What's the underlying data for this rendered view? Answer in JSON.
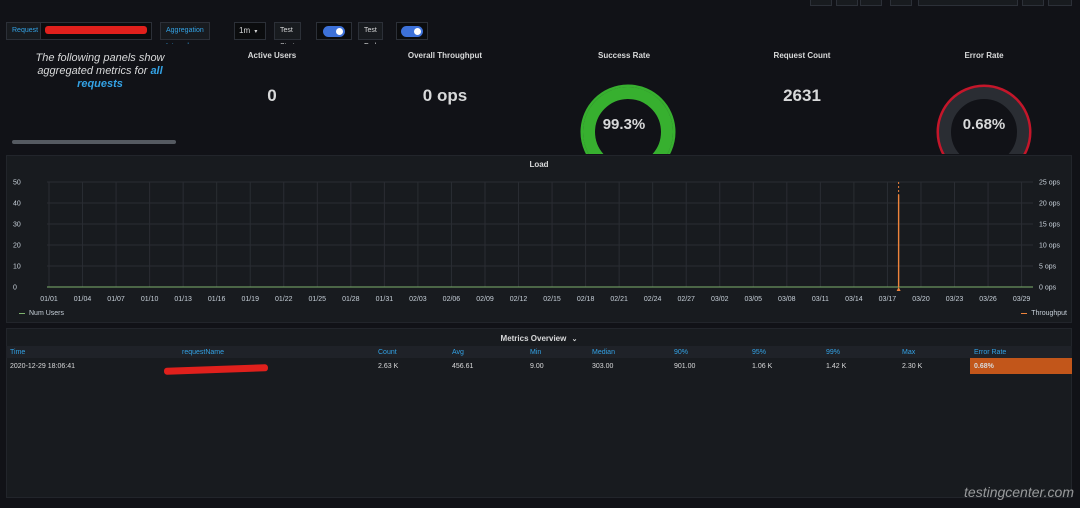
{
  "variables": {
    "request_label": "Request",
    "aggregation_label": "Aggregation Interval",
    "aggregation_value": "1m",
    "aggregation_caret": "▾",
    "test_start_label": "Test Start",
    "test_end_label": "Test End"
  },
  "info_panel": {
    "text_before": "The following panels show aggregated metrics for ",
    "text_highlight": "all requests"
  },
  "stats": {
    "active_users": {
      "title": "Active Users",
      "value": "0"
    },
    "throughput": {
      "title": "Overall Throughput",
      "value": "0 ops"
    },
    "success_rate": {
      "title": "Success Rate",
      "value": "99.3%",
      "fraction": 0.993,
      "color": "#37b02f"
    },
    "request_count": {
      "title": "Request Count",
      "value": "2631"
    },
    "error_rate": {
      "title": "Error Rate",
      "value": "0.68%",
      "fraction": 0.0068,
      "color": "#e0752d",
      "threshold_color": "#c4162a"
    }
  },
  "load_panel": {
    "title": "Load",
    "legend_left": "Num Users",
    "legend_right": "Throughput",
    "colors": {
      "users": "#7eb26d",
      "throughput": "#ef843c"
    }
  },
  "chart_data": {
    "type": "line",
    "title": "Load",
    "x_ticks": [
      "01/01",
      "01/04",
      "01/07",
      "01/10",
      "01/13",
      "01/16",
      "01/19",
      "01/22",
      "01/25",
      "01/28",
      "01/31",
      "02/03",
      "02/06",
      "02/09",
      "02/12",
      "02/15",
      "02/18",
      "02/21",
      "02/24",
      "02/27",
      "03/02",
      "03/05",
      "03/08",
      "03/11",
      "03/14",
      "03/17",
      "03/20",
      "03/23",
      "03/26",
      "03/29"
    ],
    "y_left_ticks": [
      "0",
      "10",
      "20",
      "30",
      "40",
      "50"
    ],
    "y_right_ticks": [
      "0 ops",
      "5 ops",
      "10 ops",
      "15 ops",
      "20 ops",
      "25 ops"
    ],
    "ylim_left": [
      0,
      50
    ],
    "ylim_right": [
      0,
      25
    ],
    "series": [
      {
        "name": "Num Users",
        "axis": "left",
        "points": []
      },
      {
        "name": "Throughput",
        "axis": "right",
        "points": [
          {
            "x": "03/18",
            "y": 0
          },
          {
            "x": "03/18",
            "y": 22
          },
          {
            "x": "03/18",
            "y": 0
          }
        ]
      }
    ],
    "grid": true
  },
  "metrics_overview": {
    "title": "Metrics Overview",
    "caret": "⌄",
    "columns": [
      "Time",
      "requestName",
      "Count",
      "Avg",
      "Min",
      "Median",
      "90%",
      "95%",
      "99%",
      "Max",
      "Error Rate"
    ],
    "rows": [
      [
        "2020-12-29 18:06:41",
        "",
        "2.63 K",
        "456.61",
        "9.00",
        "303.00",
        "901.00",
        "1.06 K",
        "1.42 K",
        "2.30 K",
        "0.68%"
      ]
    ]
  },
  "watermark": "testingcenter.com"
}
